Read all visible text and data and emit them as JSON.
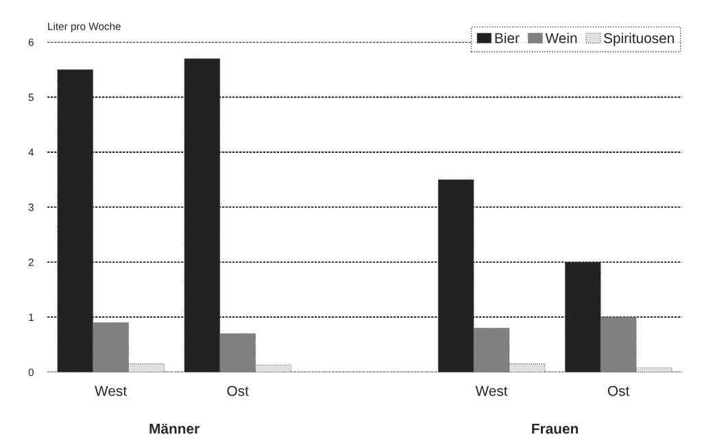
{
  "chart_data": {
    "type": "bar",
    "ylabel": "Liter pro Woche",
    "categories": [
      "West",
      "Ost",
      null,
      "West",
      "Ost"
    ],
    "series": [
      {
        "name": "Bier",
        "color": "#222222",
        "values": [
          5.5,
          5.7,
          null,
          3.5,
          2.0
        ]
      },
      {
        "name": "Wein",
        "color": "#808080",
        "values": [
          0.9,
          0.7,
          null,
          0.8,
          1.0
        ]
      },
      {
        "name": "Spirituosen",
        "color": "#e0e0e0",
        "values": [
          0.15,
          0.13,
          null,
          0.15,
          0.08
        ]
      }
    ],
    "annotations": [
      "Männer",
      "Frauen"
    ],
    "ylim": [
      0,
      6
    ],
    "yticks": [
      0,
      1,
      2,
      3,
      4,
      5,
      6
    ],
    "grid": "y",
    "legend": "top right"
  }
}
